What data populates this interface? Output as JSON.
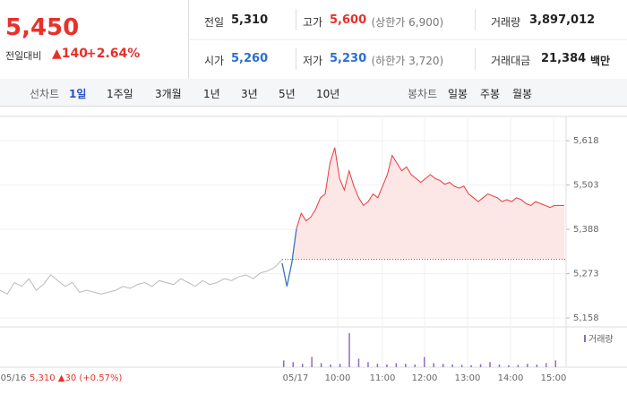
{
  "quote": {
    "price": "5,450",
    "change_label": "전일대비",
    "change": "▲140",
    "change_pct": "+2.64%",
    "items": [
      {
        "label": "전일",
        "value": "5,310"
      },
      {
        "label": "고가",
        "value": "5,600",
        "extra": "(상한가 6,900)"
      },
      {
        "label": "거래량",
        "value": "3,897,012"
      },
      {
        "label": "시가",
        "value": "5,260"
      },
      {
        "label": "저가",
        "value": "5,230",
        "extra": "(하한가 3,720)"
      },
      {
        "label": "거래대금",
        "value": "21,384",
        "extra": "백만"
      }
    ]
  },
  "tabs": {
    "line_label": "선차트",
    "line": [
      "1일",
      "1주일",
      "3개월",
      "1년",
      "3년",
      "5년",
      "10년"
    ],
    "candle_label": "봉차트",
    "candle": [
      "일봉",
      "주봉",
      "월봉"
    ]
  },
  "chart_data": {
    "type": "line",
    "ylim": [
      5135,
      5681
    ],
    "yticks": [
      {
        "value": 5618,
        "label": "5,618"
      },
      {
        "value": 5503,
        "label": "5,503"
      },
      {
        "value": 5388,
        "label": "5,388"
      },
      {
        "value": 5273,
        "label": "5,273"
      },
      {
        "value": 5158,
        "label": "5,158"
      }
    ],
    "x_labels": [
      "05/16",
      "05/17",
      "10:00",
      "11:00",
      "12:00",
      "13:00",
      "14:00",
      "15:00"
    ],
    "prev_day_note": "5,310 ▲30 (+0.57%)",
    "prev_close": 5310,
    "volume_name": "거래량",
    "series": [
      {
        "name": "05/16",
        "color": "#bbbbbb",
        "values": [
          5230,
          5220,
          5250,
          5240,
          5260,
          5230,
          5245,
          5270,
          5255,
          5240,
          5250,
          5225,
          5230,
          5225,
          5220,
          5225,
          5230,
          5240,
          5235,
          5245,
          5250,
          5240,
          5255,
          5250,
          5245,
          5260,
          5250,
          5240,
          5255,
          5245,
          5250,
          5260,
          5255,
          5265,
          5270,
          5260,
          5275,
          5280,
          5290,
          5310
        ]
      },
      {
        "name": "05/17",
        "color": "#e83a3a",
        "down_color": "#2b78c5",
        "values": [
          5300,
          5240,
          5300,
          5390,
          5430,
          5410,
          5420,
          5440,
          5470,
          5480,
          5560,
          5600,
          5520,
          5490,
          5540,
          5500,
          5470,
          5450,
          5460,
          5480,
          5470,
          5500,
          5530,
          5580,
          5560,
          5540,
          5550,
          5530,
          5520,
          5510,
          5520,
          5530,
          5520,
          5515,
          5505,
          5510,
          5500,
          5495,
          5500,
          5480,
          5470,
          5460,
          5470,
          5480,
          5475,
          5470,
          5460,
          5465,
          5460,
          5470,
          5465,
          5455,
          5450,
          5460,
          5455,
          5450,
          5445,
          5450,
          5450,
          5450
        ]
      }
    ],
    "volume": {
      "color": "#8a6fb8",
      "values": [
        20,
        15,
        10,
        30,
        12,
        8,
        10,
        100,
        25,
        15,
        10,
        8,
        12,
        10,
        8,
        30,
        12,
        10,
        8,
        7,
        6,
        9,
        15,
        8,
        6,
        7,
        10,
        8,
        12,
        20
      ]
    }
  }
}
